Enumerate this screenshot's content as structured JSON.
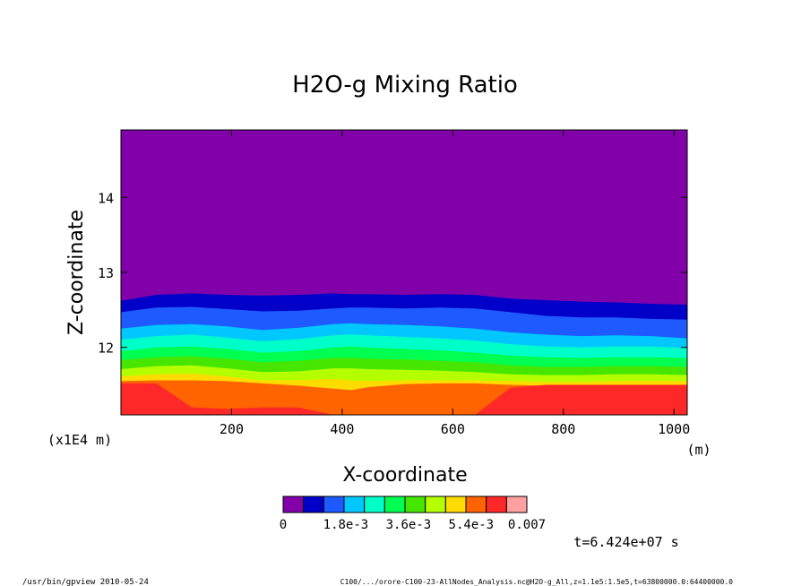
{
  "chart_data": {
    "type": "heatmap",
    "title": "H2O-g Mixing Ratio",
    "xlabel": "X-coordinate",
    "ylabel": "Z-coordinate",
    "x_unit": "(m)",
    "y_unit": "(x1E4 m)",
    "xlim": [
      0,
      1024
    ],
    "ylim": [
      11.1,
      14.9
    ],
    "x_ticks": [
      {
        "value": 200,
        "label": "200"
      },
      {
        "value": 400,
        "label": "400"
      },
      {
        "value": 600,
        "label": "600"
      },
      {
        "value": 800,
        "label": "800"
      },
      {
        "value": 1000,
        "label": "1000"
      }
    ],
    "y_ticks": [
      {
        "value": 12,
        "label": "12"
      },
      {
        "value": 13,
        "label": "13"
      },
      {
        "value": 14,
        "label": "14"
      }
    ],
    "colorbar": {
      "colors": [
        "#8200aa",
        "#0000c8",
        "#1e5aff",
        "#00c8ff",
        "#00ffc8",
        "#00ff50",
        "#46e600",
        "#b4ff00",
        "#ffdc00",
        "#ff6400",
        "#ff2828",
        "#ffa0a0"
      ],
      "min": 0,
      "max": 0.007,
      "labels": [
        {
          "value": 0,
          "label": "0"
        },
        {
          "value": 0.0018,
          "label": "1.8e-3"
        },
        {
          "value": 0.0036,
          "label": "3.6e-3"
        },
        {
          "value": 0.0054,
          "label": "5.4e-3"
        },
        {
          "value": 0.007,
          "label": "0.007"
        }
      ]
    },
    "boundaries": {
      "x": [
        0,
        64,
        128,
        192,
        256,
        320,
        384,
        416,
        448,
        512,
        576,
        640,
        704,
        768,
        832,
        896,
        960,
        1024
      ],
      "levels": [
        [
          12.62,
          12.7,
          12.72,
          12.7,
          12.69,
          12.7,
          12.72,
          12.71,
          12.71,
          12.7,
          12.71,
          12.7,
          12.65,
          12.63,
          12.61,
          12.6,
          12.58,
          12.57
        ],
        [
          12.47,
          12.53,
          12.54,
          12.51,
          12.48,
          12.49,
          12.52,
          12.53,
          12.53,
          12.52,
          12.53,
          12.52,
          12.47,
          12.42,
          12.4,
          12.4,
          12.38,
          12.37
        ],
        [
          12.25,
          12.3,
          12.31,
          12.28,
          12.23,
          12.26,
          12.31,
          12.32,
          12.31,
          12.3,
          12.28,
          12.25,
          12.2,
          12.17,
          12.15,
          12.16,
          12.15,
          12.12
        ],
        [
          12.1,
          12.15,
          12.17,
          12.13,
          12.08,
          12.11,
          12.16,
          12.17,
          12.16,
          12.14,
          12.12,
          12.09,
          12.04,
          12.01,
          12.0,
          12.01,
          12.01,
          11.99
        ],
        [
          11.95,
          12.0,
          12.01,
          11.98,
          11.93,
          11.95,
          12.0,
          12.01,
          12.0,
          11.98,
          11.96,
          11.93,
          11.89,
          11.87,
          11.86,
          11.87,
          11.87,
          11.86
        ],
        [
          11.83,
          11.87,
          11.88,
          11.85,
          11.8,
          11.82,
          11.86,
          11.86,
          11.85,
          11.84,
          11.82,
          11.8,
          11.76,
          11.74,
          11.74,
          11.75,
          11.75,
          11.74
        ],
        [
          11.71,
          11.75,
          11.76,
          11.72,
          11.67,
          11.68,
          11.72,
          11.72,
          11.71,
          11.7,
          11.69,
          11.67,
          11.64,
          11.63,
          11.63,
          11.64,
          11.64,
          11.63
        ],
        [
          11.61,
          11.64,
          11.65,
          11.61,
          11.56,
          11.56,
          11.58,
          11.56,
          11.55,
          11.56,
          11.56,
          11.56,
          11.55,
          11.54,
          11.54,
          11.55,
          11.55,
          11.55
        ],
        [
          11.55,
          11.56,
          11.56,
          11.55,
          11.52,
          11.49,
          11.45,
          11.43,
          11.47,
          11.51,
          11.52,
          11.52,
          11.5,
          11.49,
          11.49,
          11.5,
          11.5,
          11.5
        ],
        [
          11.52,
          11.52,
          11.2,
          11.18,
          11.2,
          11.2,
          11.1,
          11.1,
          11.1,
          11.1,
          11.1,
          11.1,
          11.46,
          11.5,
          11.5,
          11.5,
          11.5,
          11.5
        ]
      ]
    },
    "time_label": "t=6.424e+07 s",
    "footer_left": "/usr/bin/gpview  2010-05-24",
    "footer_right": "C100/.../orore-C100-23-AllNodes_Analysis.nc@H2O-g_All,z=1.1e5:1.5e5,t=63800000.0:64400000.0"
  }
}
